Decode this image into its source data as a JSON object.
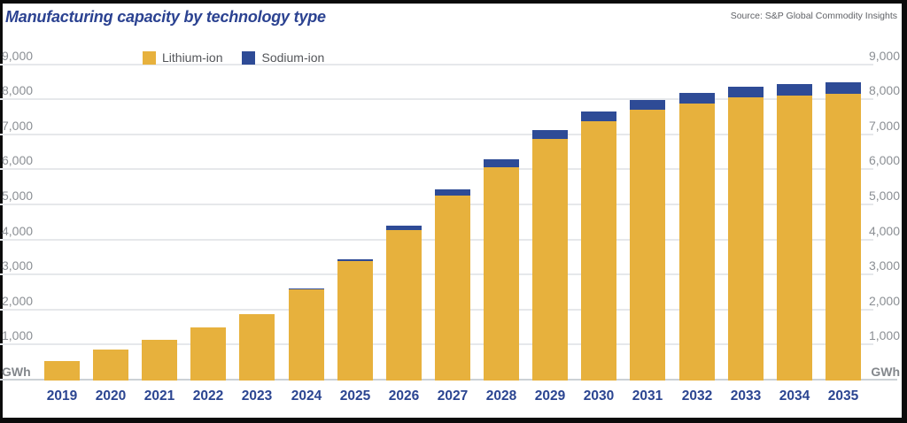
{
  "header": {
    "title": "Manufacturing capacity by technology type",
    "source": "Source: S&P Global Commodity Insights"
  },
  "legend": [
    {
      "label": "Lithium-ion",
      "color": "#e7b13d"
    },
    {
      "label": "Sodium-ion",
      "color": "#2e4b96"
    }
  ],
  "colors": {
    "lithium": "#e7b13d",
    "sodium": "#2e4b96",
    "title_navy": "#2b4291",
    "year_navy": "#2b4591",
    "tick_gray": "#8b8f94",
    "gridline": "#e6e8eb"
  },
  "chart_data": {
    "type": "bar",
    "stacked": true,
    "title": "Manufacturing capacity by technology type",
    "unit_label": "GWh",
    "categories": [
      "2019",
      "2020",
      "2021",
      "2022",
      "2023",
      "2024",
      "2025",
      "2026",
      "2027",
      "2028",
      "2029",
      "2030",
      "2031",
      "2032",
      "2033",
      "2034",
      "2035"
    ],
    "series": [
      {
        "name": "Lithium-ion",
        "color": "#e7b13d",
        "values": [
          560,
          890,
          1160,
          1510,
          1900,
          2600,
          3410,
          4290,
          5280,
          6090,
          6880,
          7390,
          7730,
          7890,
          8070,
          8140,
          8190
        ]
      },
      {
        "name": "Sodium-ion",
        "color": "#2e4b96",
        "values": [
          0,
          0,
          0,
          0,
          0,
          20,
          60,
          130,
          180,
          210,
          260,
          280,
          280,
          310,
          320,
          320,
          330
        ]
      }
    ],
    "ylim": [
      0,
      9000
    ],
    "ytick_interval": 1000,
    "ytick_labels": [
      "1,000",
      "2,000",
      "3,000",
      "4,000",
      "5,000",
      "6,000",
      "7,000",
      "8,000",
      "9,000"
    ],
    "grid": true,
    "legend_position": "top-left",
    "y_axis_sides": "both"
  }
}
